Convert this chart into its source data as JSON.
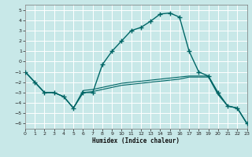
{
  "xlabel": "Humidex (Indice chaleur)",
  "xlim": [
    0,
    23
  ],
  "ylim": [
    -6.5,
    5.5
  ],
  "yticks": [
    -6,
    -5,
    -4,
    -3,
    -2,
    -1,
    0,
    1,
    2,
    3,
    4,
    5
  ],
  "xticks": [
    0,
    1,
    2,
    3,
    4,
    5,
    6,
    7,
    8,
    9,
    10,
    11,
    12,
    13,
    14,
    15,
    16,
    17,
    18,
    19,
    20,
    21,
    22,
    23
  ],
  "bg_color": "#c8e8e8",
  "grid_color": "#ffffff",
  "line_color": "#006666",
  "main_line": {
    "x": [
      0,
      1,
      2,
      3,
      4,
      5,
      6,
      7,
      8,
      9,
      10,
      11,
      12,
      13,
      14,
      15,
      16,
      17,
      18,
      19,
      20,
      21,
      22,
      23
    ],
    "y": [
      -1,
      -2,
      -3,
      -3,
      -3.4,
      -4.5,
      -3,
      -3,
      -0.3,
      1,
      2,
      3,
      3.3,
      3.9,
      4.6,
      4.7,
      4.3,
      1,
      -1,
      -1.4,
      -3,
      -4.3,
      -4.5,
      -6
    ]
  },
  "line2": {
    "x": [
      0,
      1,
      2,
      3,
      4,
      5,
      6,
      7,
      8,
      9,
      10,
      11,
      12,
      13,
      14,
      15,
      16,
      17,
      18,
      19,
      20,
      21,
      22,
      23
    ],
    "y": [
      -1,
      -2,
      -3,
      -3,
      -3.4,
      -4.5,
      -2.8,
      -2.7,
      -2.5,
      -2.3,
      -2.1,
      -2.0,
      -1.9,
      -1.8,
      -1.7,
      -1.6,
      -1.5,
      -1.4,
      -1.4,
      -1.4,
      -3.1,
      -4.3,
      -4.5,
      -6
    ]
  },
  "line3": {
    "x": [
      0,
      1,
      2,
      3,
      4,
      5,
      6,
      7,
      8,
      9,
      10,
      11,
      12,
      13,
      14,
      15,
      16,
      17,
      18,
      19,
      20,
      21,
      22,
      23
    ],
    "y": [
      -1,
      -2,
      -3,
      -3,
      -3.4,
      -4.5,
      -3.0,
      -2.9,
      -2.7,
      -2.5,
      -2.3,
      -2.2,
      -2.1,
      -2.0,
      -1.9,
      -1.8,
      -1.7,
      -1.5,
      -1.5,
      -1.5,
      -3.2,
      -4.3,
      -4.5,
      -6
    ]
  }
}
